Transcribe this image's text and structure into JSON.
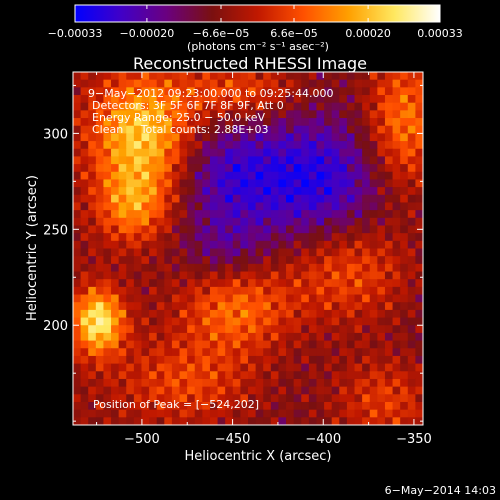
{
  "colorbar": {
    "tick_labels": [
      "−0.00033",
      "−0.00020",
      "−6.6e−05",
      "6.6e−05",
      "0.00020",
      "0.00033"
    ],
    "tick_values": [
      -0.00033,
      -0.0002,
      -6.6e-05,
      6.6e-05,
      0.0002,
      0.00033
    ],
    "range": [
      -0.00033,
      0.00033
    ],
    "unit_label": "(photons cm⁻² s⁻¹ asec⁻²)",
    "colormap_stops": [
      "#0000ff",
      "#4000c8",
      "#6a0080",
      "#7a1010",
      "#c01800",
      "#ff5000",
      "#ffa000",
      "#ffe860",
      "#ffffff"
    ]
  },
  "chart_data": {
    "type": "heatmap",
    "title": "Reconstructed RHESSI Image",
    "xlabel": "Heliocentric X (arcsec)",
    "ylabel": "Heliocentric Y (arcsec)",
    "xlim": [
      -538,
      -345
    ],
    "ylim": [
      148,
      332
    ],
    "x_ticks": [
      -500,
      -450,
      -400,
      -350
    ],
    "y_ticks": [
      200,
      250,
      300
    ],
    "x_tick_labels": [
      "−500",
      "−450",
      "−400",
      "−350"
    ],
    "y_tick_labels": [
      "200",
      "250",
      "300"
    ],
    "peak_position": [
      -524,
      202
    ],
    "total_counts": "2.88E+03",
    "energy_range_kev": [
      25.0,
      50.0
    ],
    "regions": [
      {
        "x": -524,
        "y": 202,
        "sx": 10,
        "sy": 12,
        "amp": 1.0
      },
      {
        "x": -500,
        "y": 300,
        "sx": 20,
        "sy": 22,
        "amp": 0.85
      },
      {
        "x": -505,
        "y": 262,
        "sx": 14,
        "sy": 14,
        "amp": 0.55
      },
      {
        "x": -448,
        "y": 208,
        "sx": 22,
        "sy": 16,
        "amp": 0.55
      },
      {
        "x": -385,
        "y": 228,
        "sx": 26,
        "sy": 20,
        "amp": 0.5
      },
      {
        "x": -355,
        "y": 305,
        "sx": 16,
        "sy": 28,
        "amp": 0.7
      },
      {
        "x": -365,
        "y": 160,
        "sx": 22,
        "sy": 18,
        "amp": 0.45
      },
      {
        "x": -475,
        "y": 170,
        "sx": 28,
        "sy": 16,
        "amp": 0.4
      },
      {
        "x": -445,
        "y": 322,
        "sx": 24,
        "sy": 10,
        "amp": 0.45
      },
      {
        "x": -408,
        "y": 275,
        "sx": 30,
        "sy": 22,
        "amp": -0.6
      },
      {
        "x": -455,
        "y": 278,
        "sx": 18,
        "sy": 18,
        "amp": -0.35
      },
      {
        "x": -455,
        "y": 240,
        "sx": 16,
        "sy": 12,
        "amp": -0.25
      }
    ]
  },
  "info_box": {
    "time_range": "9−May−2012 09:23:00.000 to 09:25:44.000",
    "detectors": "Detectors: 3F 5F 6F 7F 8F 9F, Att 0",
    "energy": "Energy Range: 25.0 − 50.0 keV",
    "method_counts": "Clean     Total counts: 2.88E+03"
  },
  "peak_label": "Position of Peak = [−524,202]",
  "timestamp": "6−May−2014 14:03"
}
